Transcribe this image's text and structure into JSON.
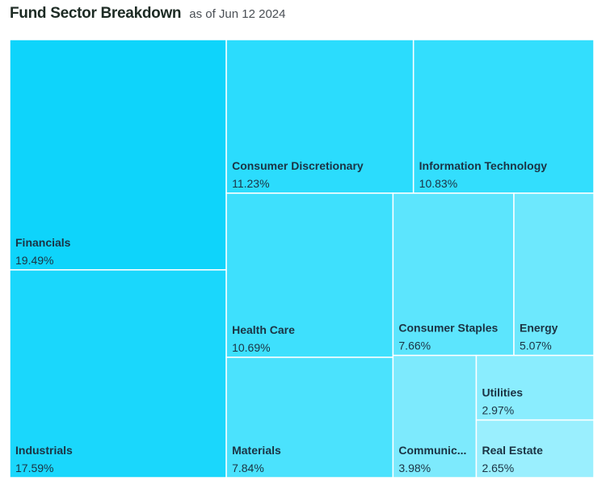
{
  "chart_data": {
    "type": "treemap",
    "title": "Fund Sector Breakdown",
    "subtitle": "as of Jun 12 2024",
    "categories": [
      "Financials",
      "Industrials",
      "Consumer Discretionary",
      "Information Technology",
      "Health Care",
      "Materials",
      "Consumer Staples",
      "Energy",
      "Communic...",
      "Utilities",
      "Real Estate"
    ],
    "values": [
      19.49,
      17.59,
      11.23,
      10.83,
      10.69,
      7.84,
      7.66,
      5.07,
      3.98,
      2.97,
      2.65
    ],
    "value_labels": [
      "19.49%",
      "17.59%",
      "11.23%",
      "10.83%",
      "10.69%",
      "7.84%",
      "7.66%",
      "5.07%",
      "3.98%",
      "2.97%",
      "2.65%"
    ],
    "colors": [
      "#0ed4fb",
      "#1ad7fc",
      "#2bdcfd",
      "#33defd",
      "#3ee0fd",
      "#4be2fd",
      "#5ce5fd",
      "#6de8fd",
      "#7deafd",
      "#8aedfe",
      "#9aeffe"
    ]
  }
}
